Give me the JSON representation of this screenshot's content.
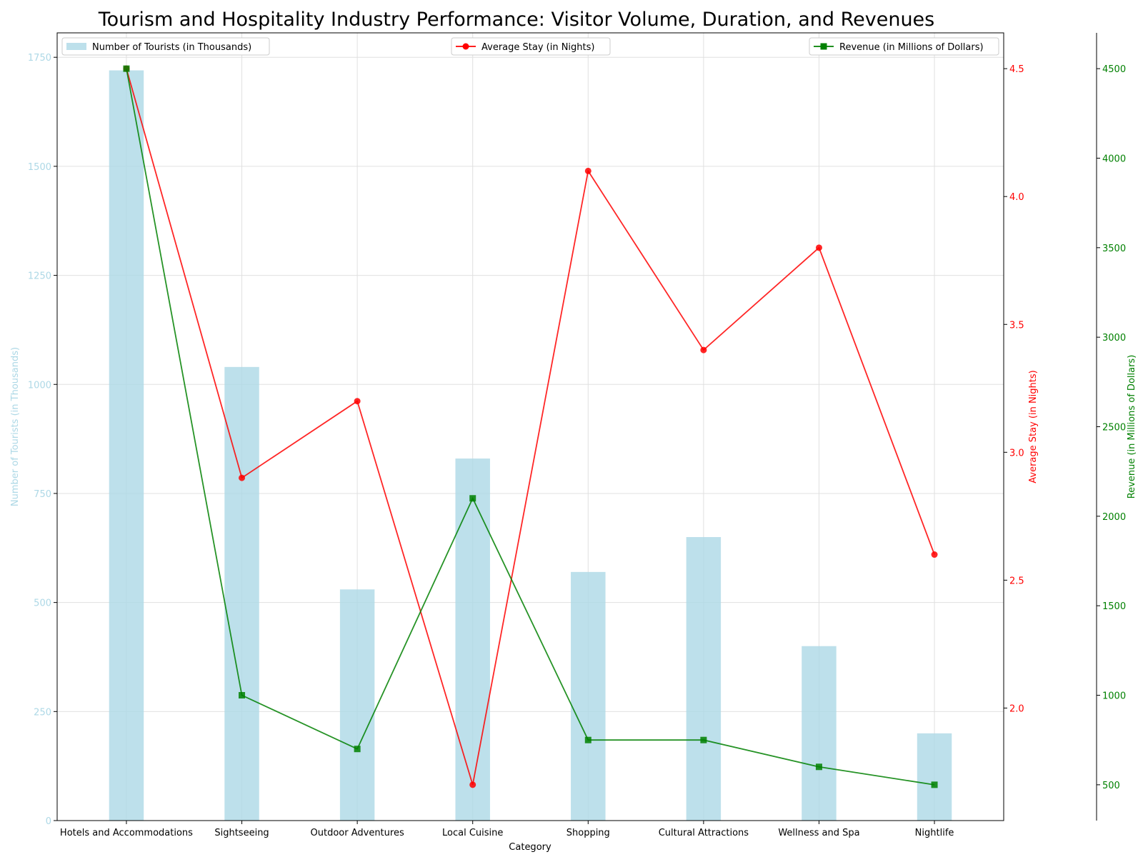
{
  "chart_data": {
    "type": "bar+line",
    "title": "Tourism and Hospitality Industry Performance: Visitor Volume, Duration, and Revenues",
    "xlabel": "Category",
    "categories": [
      "Hotels and Accommodations",
      "Sightseeing",
      "Outdoor Adventures",
      "Local Cuisine",
      "Shopping",
      "Cultural Attractions",
      "Wellness and Spa",
      "Nightlife"
    ],
    "series": [
      {
        "name": "Number of Tourists (in Thousands)",
        "kind": "bar",
        "axis": "left",
        "color": "#add8e6",
        "values": [
          1720,
          1040,
          530,
          830,
          570,
          650,
          400,
          200
        ]
      },
      {
        "name": "Average Stay (in Nights)",
        "kind": "line",
        "marker": "circle",
        "axis": "right",
        "color": "#ff0000",
        "values": [
          4.5,
          2.9,
          3.2,
          1.7,
          4.1,
          3.4,
          3.8,
          2.6
        ]
      },
      {
        "name": "Revenue (in Millions of Dollars)",
        "kind": "line",
        "marker": "square",
        "axis": "far-right",
        "color": "#008000",
        "values": [
          4500,
          1000,
          700,
          2100,
          750,
          750,
          600,
          500
        ]
      }
    ],
    "axes": {
      "left": {
        "label": "Number of Tourists (in Thousands)",
        "range": [
          0,
          1806
        ],
        "ticks": [
          0,
          250,
          500,
          750,
          1000,
          1250,
          1500,
          1750
        ],
        "color": "#add8e6"
      },
      "right": {
        "label": "Average Stay (in Nights)",
        "range": [
          1.56,
          4.64
        ],
        "ticks": [
          2.0,
          2.5,
          3.0,
          3.5,
          4.0,
          4.5
        ],
        "tick_labels": [
          "2.0",
          "2.5",
          "3.0",
          "3.5",
          "4.0",
          "4.5"
        ],
        "color": "#ff0000"
      },
      "far_right": {
        "label": "Revenue (in Millions of Dollars)",
        "range": [
          300,
          4700
        ],
        "ticks": [
          500,
          1000,
          1500,
          2000,
          2500,
          3000,
          3500,
          4000,
          4500
        ],
        "color": "#008000"
      }
    },
    "grid": true,
    "legends": [
      "upper-left",
      "upper-center",
      "upper-right"
    ]
  }
}
